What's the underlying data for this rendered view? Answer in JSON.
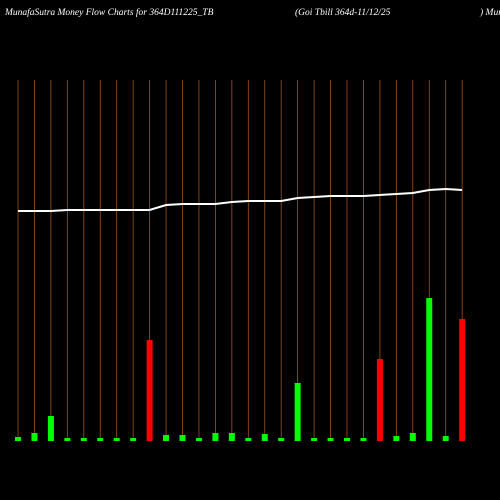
{
  "chart_data": {
    "type": "bar-line",
    "title": "MunafaSutra  Money Flow  Charts for 364D111225_TB",
    "subtitle": "(Goi  Tbill 364d-11/12/25",
    "title_right": ") Munafa",
    "categories": [
      null,
      null,
      null,
      null,
      null,
      null,
      null,
      null,
      null,
      null,
      null,
      null,
      null,
      null,
      null,
      null,
      null,
      null,
      null,
      null,
      null,
      null,
      null,
      null,
      null,
      null,
      null,
      null
    ],
    "series": [
      {
        "type": "bar",
        "values": [
          4,
          8,
          25,
          3,
          3,
          3,
          3,
          3,
          101,
          6,
          6,
          3,
          8,
          8,
          3,
          7,
          3,
          58,
          3,
          3,
          3,
          3,
          82,
          5,
          8,
          143,
          5,
          122
        ],
        "colors": [
          "#00ff00",
          "#00ff00",
          "#00ff00",
          "#00ff00",
          "#00ff00",
          "#00ff00",
          "#00ff00",
          "#00ff00",
          "#ff0000",
          "#00ff00",
          "#00ff00",
          "#00ff00",
          "#00ff00",
          "#00ff00",
          "#00ff00",
          "#00ff00",
          "#00ff00",
          "#00ff00",
          "#00ff00",
          "#00ff00",
          "#00ff00",
          "#00ff00",
          "#ff0000",
          "#00ff00",
          "#00ff00",
          "#00ff00",
          "#00ff00",
          "#ff0000"
        ]
      },
      {
        "type": "line",
        "color": "#ffffff",
        "values": [
          230,
          230,
          230,
          231,
          231,
          231,
          231,
          231,
          231,
          236,
          237,
          237,
          237,
          239,
          240,
          240,
          240,
          243,
          244,
          245,
          245,
          245,
          246,
          247,
          248,
          251,
          252,
          251
        ]
      }
    ],
    "ylim": [
      0,
      361
    ],
    "gridline_color": "#a0521c"
  }
}
